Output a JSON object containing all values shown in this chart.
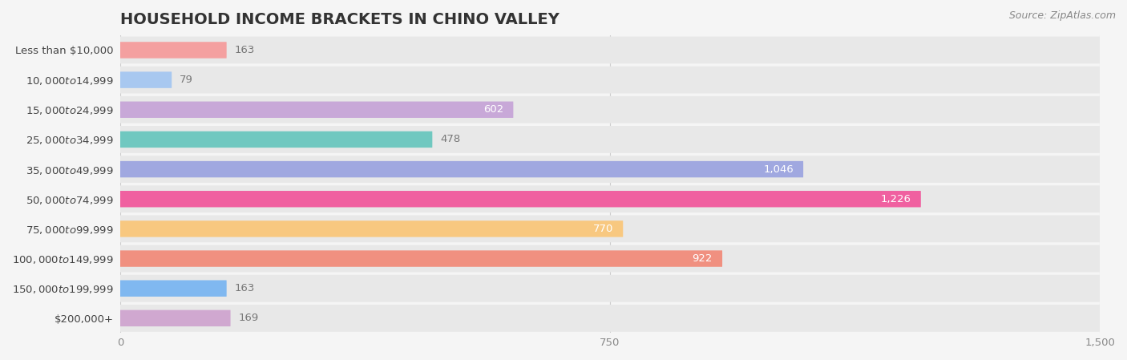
{
  "title": "HOUSEHOLD INCOME BRACKETS IN CHINO VALLEY",
  "source": "Source: ZipAtlas.com",
  "categories": [
    "Less than $10,000",
    "$10,000 to $14,999",
    "$15,000 to $24,999",
    "$25,000 to $34,999",
    "$35,000 to $49,999",
    "$50,000 to $74,999",
    "$75,000 to $99,999",
    "$100,000 to $149,999",
    "$150,000 to $199,999",
    "$200,000+"
  ],
  "values": [
    163,
    79,
    602,
    478,
    1046,
    1226,
    770,
    922,
    163,
    169
  ],
  "bar_colors": [
    "#F4A0A0",
    "#A8C8F0",
    "#C8A8D8",
    "#70C8C0",
    "#A0A8E0",
    "#F060A0",
    "#F8C880",
    "#F09080",
    "#80B8F0",
    "#D0A8D0"
  ],
  "xlim": [
    0,
    1500
  ],
  "xticks": [
    0,
    750,
    1500
  ],
  "background_color": "#f5f5f5",
  "bar_bg_color": "#e8e8e8",
  "title_fontsize": 14,
  "label_fontsize": 9.5,
  "tick_fontsize": 9.5,
  "source_fontsize": 9,
  "bar_height": 0.55,
  "value_threshold_inside": 500
}
